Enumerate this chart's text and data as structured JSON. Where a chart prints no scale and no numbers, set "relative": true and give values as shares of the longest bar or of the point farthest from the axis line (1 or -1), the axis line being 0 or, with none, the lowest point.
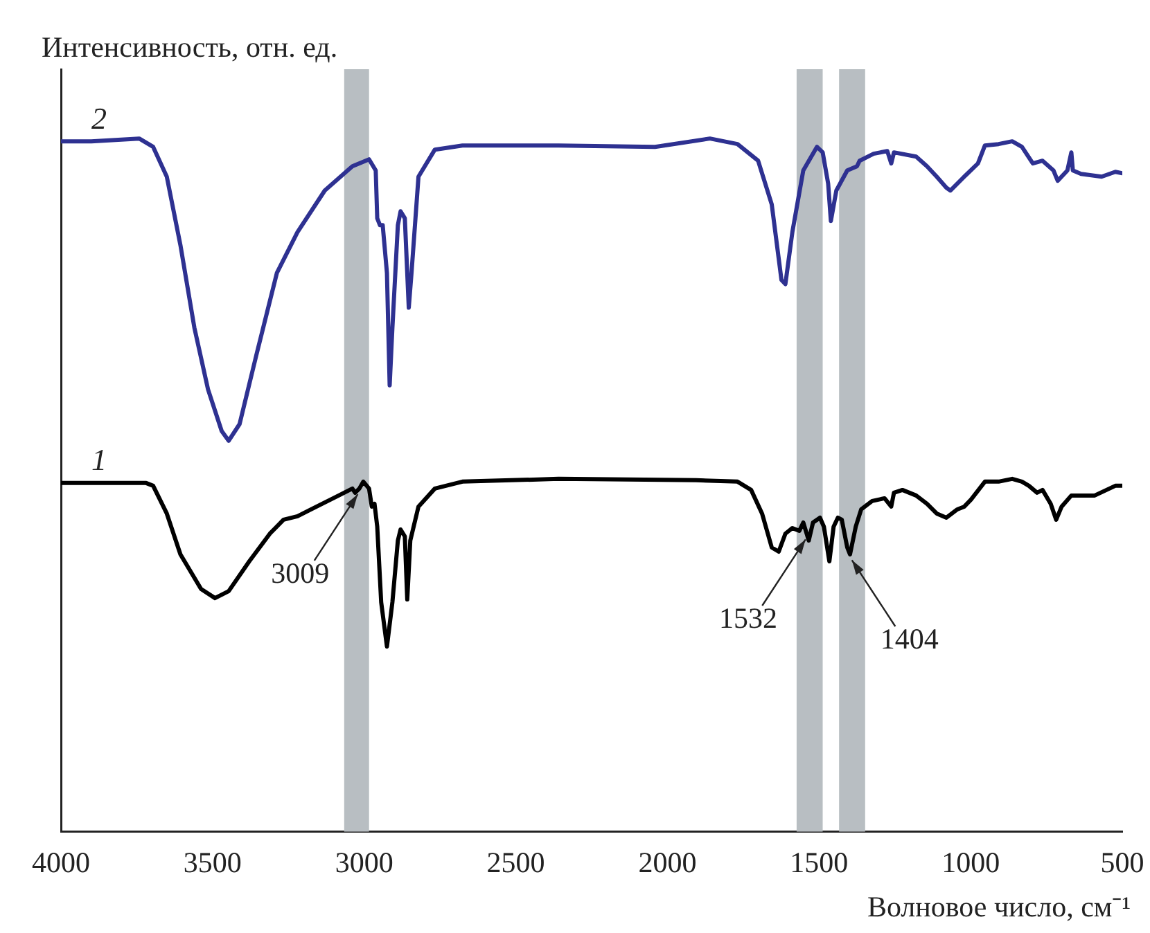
{
  "chart_data": {
    "type": "line",
    "relative": true,
    "ylabel": "Интенсивность, отн. ед.",
    "xlabel": "Волновое число, см⁻¹",
    "xlim": [
      4000,
      500
    ],
    "xticks": [
      4000,
      3500,
      3000,
      2500,
      2000,
      1500,
      1000,
      500
    ],
    "marker": "none",
    "series": [
      {
        "name": "1",
        "color": "#000000",
        "x": [
          4000,
          3719,
          3696,
          3651,
          3606,
          3538,
          3492,
          3447,
          3379,
          3311,
          3266,
          3220,
          3175,
          3084,
          3039,
          3030,
          3016,
          3003,
          2984,
          2975,
          2966,
          2957,
          2944,
          2925,
          2907,
          2889,
          2880,
          2866,
          2858,
          2848,
          2821,
          2767,
          2676,
          2359,
          1905,
          1769,
          1724,
          1688,
          1656,
          1633,
          1611,
          1588,
          1565,
          1552,
          1534,
          1520,
          1497,
          1484,
          1466,
          1452,
          1438,
          1425,
          1407,
          1398,
          1379,
          1361,
          1325,
          1284,
          1262,
          1253,
          1225,
          1180,
          1144,
          1112,
          1080,
          1044,
          1021,
          999,
          953,
          908,
          863,
          831,
          808,
          781,
          763,
          736,
          718,
          700,
          668,
          591,
          523,
          500
        ],
        "values": [
          0.503,
          0.503,
          0.499,
          0.459,
          0.4,
          0.35,
          0.337,
          0.347,
          0.39,
          0.43,
          0.45,
          0.455,
          0.465,
          0.485,
          0.495,
          0.489,
          0.495,
          0.505,
          0.495,
          0.469,
          0.473,
          0.44,
          0.331,
          0.267,
          0.331,
          0.42,
          0.436,
          0.426,
          0.335,
          0.42,
          0.469,
          0.495,
          0.505,
          0.509,
          0.507,
          0.505,
          0.493,
          0.459,
          0.41,
          0.404,
          0.43,
          0.438,
          0.434,
          0.446,
          0.42,
          0.446,
          0.453,
          0.44,
          0.39,
          0.44,
          0.453,
          0.45,
          0.41,
          0.4,
          0.44,
          0.465,
          0.477,
          0.481,
          0.469,
          0.489,
          0.493,
          0.485,
          0.473,
          0.459,
          0.453,
          0.465,
          0.469,
          0.479,
          0.505,
          0.505,
          0.509,
          0.505,
          0.499,
          0.489,
          0.493,
          0.473,
          0.45,
          0.469,
          0.485,
          0.485,
          0.499,
          0.499
        ]
      },
      {
        "name": "2",
        "color": "#2e3191",
        "x": [
          4000,
          3900,
          3742,
          3696,
          3651,
          3606,
          3560,
          3515,
          3470,
          3447,
          3411,
          3356,
          3288,
          3220,
          3130,
          3039,
          2984,
          2962,
          2957,
          2948,
          2939,
          2925,
          2916,
          2907,
          2889,
          2880,
          2866,
          2853,
          2844,
          2821,
          2767,
          2676,
          2359,
          2041,
          1860,
          1769,
          1701,
          1656,
          1624,
          1611,
          1588,
          1552,
          1507,
          1488,
          1470,
          1461,
          1443,
          1407,
          1375,
          1366,
          1320,
          1275,
          1262,
          1253,
          1180,
          1144,
          1112,
          1080,
          1067,
          1021,
          976,
          953,
          908,
          863,
          831,
          795,
          763,
          727,
          713,
          681,
          668,
          663,
          636,
          568,
          523,
          500
        ],
        "values": [
          0.996,
          0.996,
          1,
          0.988,
          0.945,
          0.846,
          0.727,
          0.638,
          0.578,
          0.564,
          0.588,
          0.687,
          0.806,
          0.865,
          0.925,
          0.96,
          0.97,
          0.954,
          0.885,
          0.875,
          0.875,
          0.806,
          0.644,
          0.727,
          0.875,
          0.895,
          0.885,
          0.756,
          0.806,
          0.945,
          0.984,
          0.99,
          0.99,
          0.988,
          1,
          0.992,
          0.968,
          0.905,
          0.796,
          0.79,
          0.865,
          0.954,
          0.988,
          0.98,
          0.935,
          0.881,
          0.925,
          0.954,
          0.96,
          0.968,
          0.978,
          0.982,
          0.964,
          0.98,
          0.974,
          0.96,
          0.945,
          0.929,
          0.925,
          0.945,
          0.964,
          0.99,
          0.992,
          0.996,
          0.988,
          0.964,
          0.968,
          0.954,
          0.939,
          0.954,
          0.98,
          0.954,
          0.949,
          0.945,
          0.952,
          0.95
        ]
      }
    ],
    "bands": [
      {
        "axis": "x",
        "from": 3066,
        "to": 2984,
        "color": "#b8bec2"
      },
      {
        "axis": "x",
        "from": 1574,
        "to": 1488,
        "color": "#b8bec2"
      },
      {
        "axis": "x",
        "from": 1434,
        "to": 1348,
        "color": "#b8bec2"
      }
    ],
    "annotations": [
      {
        "text": "3009",
        "x": 3009,
        "y": 0.495
      },
      {
        "text": "1532",
        "x": 1532,
        "y": 0.43
      },
      {
        "text": "1404",
        "x": 1404,
        "y": 0.4
      }
    ]
  }
}
